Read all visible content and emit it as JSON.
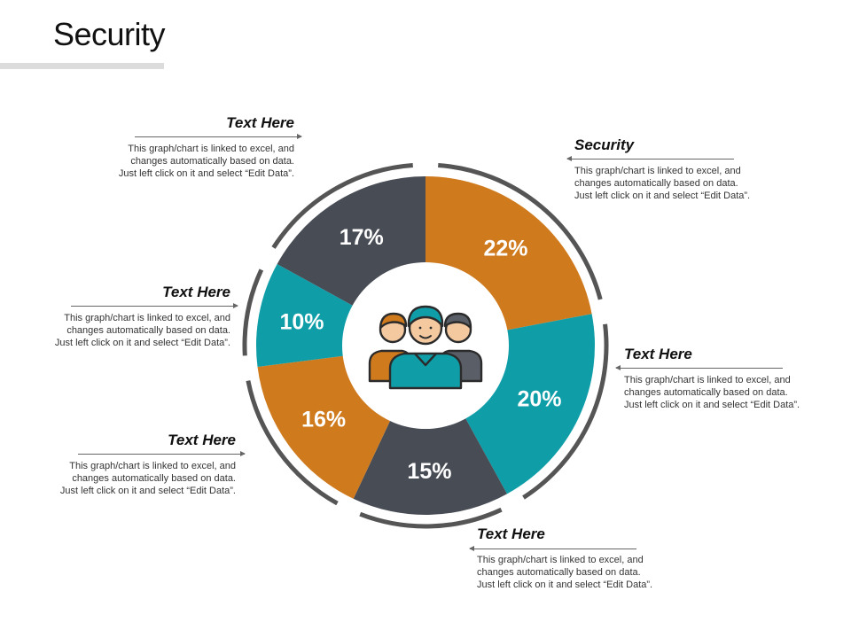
{
  "title": "Security",
  "colors": {
    "orange": "#D07A1E",
    "teal": "#0F9EA8",
    "slate": "#484C55",
    "ring": "#555555"
  },
  "center_icon": "team-people-icon",
  "chart_data": {
    "type": "pie",
    "variant": "donut",
    "slices": [
      {
        "label": "22%",
        "value": 22,
        "color": "#D07A1E"
      },
      {
        "label": "20%",
        "value": 20,
        "color": "#0F9EA8"
      },
      {
        "label": "15%",
        "value": 15,
        "color": "#484C55"
      },
      {
        "label": "16%",
        "value": 16,
        "color": "#D07A1E"
      },
      {
        "label": "10%",
        "value": 10,
        "color": "#0F9EA8"
      },
      {
        "label": "17%",
        "value": 17,
        "color": "#484C55"
      }
    ]
  },
  "annotations": [
    {
      "title": "Text Here",
      "body": "This graph/chart is linked to excel, and\nchanges automatically based on data.\nJust left click on it and select “Edit Data”."
    },
    {
      "title": "Security",
      "body": "This graph/chart is linked to excel, and\nchanges automatically based on data.\nJust left click on it and select “Edit Data”."
    },
    {
      "title": "Text Here",
      "body": "This graph/chart is linked to excel, and\nchanges automatically based on data.\nJust left click on it and select “Edit Data”."
    },
    {
      "title": "Text Here",
      "body": "This graph/chart is linked to excel, and\nchanges automatically based on data.\nJust left click on it and select “Edit Data”."
    },
    {
      "title": "Text Here",
      "body": "This graph/chart is linked to excel, and\nchanges automatically based on data.\nJust left click on it and select “Edit Data”."
    },
    {
      "title": "Text Here",
      "body": "This graph/chart is linked to excel, and\nchanges automatically based on data.\nJust left click on it and select “Edit Data”."
    }
  ]
}
